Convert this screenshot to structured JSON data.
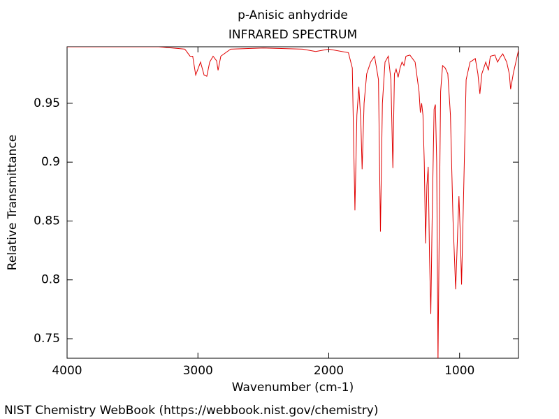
{
  "chart_data": {
    "type": "line",
    "title": "p-Anisic anhydride",
    "subtitle": "INFRARED SPECTRUM",
    "x_label": "Wavenumber (cm-1)",
    "y_label": "Relative Transmittance",
    "source": "NIST Chemistry WebBook (https://webbook.nist.gov/chemistry)",
    "color": "#e00000",
    "xlim": [
      4000,
      550
    ],
    "ylim": [
      0.7334,
      0.998
    ],
    "xticks": [
      4000,
      3000,
      2000,
      1000
    ],
    "yticks": [
      0.75,
      0.8,
      0.85,
      0.9,
      0.95
    ],
    "x": [
      4000,
      3300,
      3100,
      3060,
      3040,
      3017,
      2980,
      2953,
      2932,
      2910,
      2884,
      2857,
      2846,
      2825,
      2750,
      2500,
      2200,
      2100,
      2000,
      1850,
      1820,
      1800,
      1785,
      1770,
      1755,
      1745,
      1730,
      1710,
      1680,
      1650,
      1620,
      1605,
      1590,
      1570,
      1545,
      1525,
      1510,
      1498,
      1485,
      1470,
      1455,
      1440,
      1425,
      1410,
      1380,
      1340,
      1310,
      1300,
      1290,
      1280,
      1270,
      1260,
      1250,
      1240,
      1230,
      1220,
      1210,
      1195,
      1185,
      1175,
      1165,
      1155,
      1145,
      1130,
      1110,
      1090,
      1070,
      1050,
      1030,
      1015,
      1005,
      995,
      985,
      970,
      950,
      920,
      880,
      860,
      845,
      830,
      800,
      780,
      765,
      730,
      710,
      690,
      670,
      640,
      620,
      610,
      590,
      560,
      550
    ],
    "values": [
      0.998,
      0.998,
      0.996,
      0.99,
      0.99,
      0.974,
      0.985,
      0.974,
      0.973,
      0.985,
      0.99,
      0.986,
      0.978,
      0.99,
      0.996,
      0.997,
      0.996,
      0.994,
      0.996,
      0.993,
      0.98,
      0.859,
      0.94,
      0.964,
      0.935,
      0.894,
      0.95,
      0.975,
      0.985,
      0.99,
      0.97,
      0.841,
      0.95,
      0.985,
      0.99,
      0.97,
      0.895,
      0.975,
      0.979,
      0.972,
      0.98,
      0.985,
      0.982,
      0.99,
      0.991,
      0.985,
      0.96,
      0.942,
      0.95,
      0.94,
      0.9,
      0.831,
      0.88,
      0.896,
      0.82,
      0.771,
      0.85,
      0.945,
      0.949,
      0.9,
      0.73,
      0.85,
      0.96,
      0.982,
      0.98,
      0.975,
      0.94,
      0.85,
      0.792,
      0.84,
      0.871,
      0.84,
      0.796,
      0.87,
      0.97,
      0.985,
      0.988,
      0.975,
      0.958,
      0.975,
      0.985,
      0.978,
      0.99,
      0.991,
      0.985,
      0.989,
      0.992,
      0.985,
      0.975,
      0.962,
      0.975,
      0.99,
      0.995
    ]
  }
}
